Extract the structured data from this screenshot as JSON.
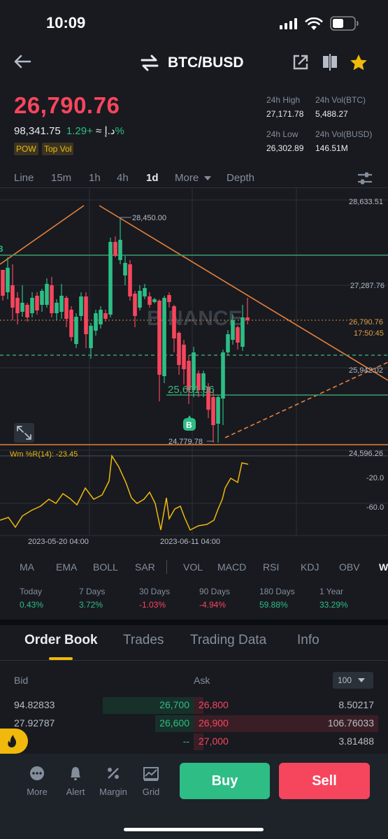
{
  "status_bar": {
    "time": "10:09"
  },
  "header": {
    "pair": "BTC/BUSD"
  },
  "price": {
    "last": "26,790.76",
    "fiat": "98,341.75 د.إ ≈",
    "change": "+1.29%",
    "tags": [
      "POW",
      "Top Vol"
    ]
  },
  "stats": {
    "high_label": "24h High",
    "high": "27,171.78",
    "vol_btc_label": "24h Vol(BTC)",
    "vol_btc": "5,488.27",
    "low_label": "24h Low",
    "low": "26,302.89",
    "vol_busd_label": "24h Vol(BUSD)",
    "vol_busd": "146.51M"
  },
  "timeframes": [
    "Line",
    "15m",
    "1h",
    "4h",
    "1d",
    "More",
    "Depth"
  ],
  "active_timeframe": "1d",
  "chart": {
    "price_axis": [
      "28,633.51",
      "27,287.76",
      "25,942.02",
      "24,596.26"
    ],
    "current_price": "26,790.76",
    "countdown": "17:50:45",
    "high_marker": "28,450.00",
    "low_marker": "24,779.78",
    "support_label": "25,601.06",
    "buy_marker": "B",
    "left_marker": "B",
    "watermark": "BINANCE",
    "indicator_label": "Wm %R(14): -23.45",
    "indicator_axis": [
      "-20.0",
      "-60.0"
    ],
    "dates": [
      "2023-05-20 04:00",
      "2023-06-11 04:00"
    ]
  },
  "indicators": [
    "MA",
    "EMA",
    "BOLL",
    "SAR",
    "VOL",
    "MACD",
    "RSI",
    "KDJ",
    "OBV",
    "W"
  ],
  "performance": [
    {
      "label": "Today",
      "value": "0.43%",
      "dir": "up"
    },
    {
      "label": "7 Days",
      "value": "3.72%",
      "dir": "up"
    },
    {
      "label": "30 Days",
      "value": "-1.03%",
      "dir": "down"
    },
    {
      "label": "90 Days",
      "value": "-4.94%",
      "dir": "down"
    },
    {
      "label": "180 Days",
      "value": "59.88%",
      "dir": "up"
    },
    {
      "label": "1 Year",
      "value": "33.29%",
      "dir": "up"
    }
  ],
  "tabs": [
    "Order Book",
    "Trades",
    "Trading Data",
    "Info"
  ],
  "order_book": {
    "bid_label": "Bid",
    "ask_label": "Ask",
    "depth_select": "100",
    "rows": [
      {
        "bid_qty": "94.82833",
        "bid_price": "26,700",
        "ask_price": "26,800",
        "ask_qty": "8.50217",
        "bid_fill": 0.47,
        "ask_fill": 0.05
      },
      {
        "bid_qty": "27.92787",
        "bid_price": "26,600",
        "ask_price": "26,900",
        "ask_qty": "106.76033",
        "bid_fill": 0.2,
        "ask_fill": 0.95
      },
      {
        "bid_qty": "",
        "bid_price": "--",
        "ask_price": "27,000",
        "ask_qty": "3.81488",
        "bid_fill": 0,
        "ask_fill": 0.05
      }
    ]
  },
  "bottom_nav": [
    "More",
    "Alert",
    "Margin",
    "Grid"
  ],
  "actions": {
    "buy": "Buy",
    "sell": "Sell"
  },
  "colors": {
    "up": "#2ebd85",
    "down": "#f6465d",
    "accent": "#f0b90b",
    "background": "#181a20"
  }
}
